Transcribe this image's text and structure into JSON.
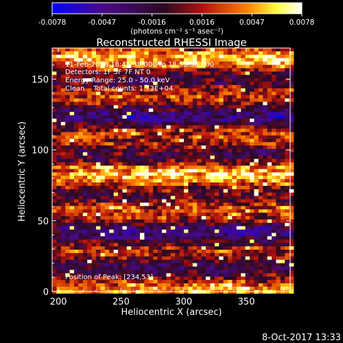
{
  "chart_data": {
    "type": "heatmap",
    "title": "Reconstructed RHESSI Image",
    "xlabel": "Heliocentric X (arcsec)",
    "ylabel": "Heliocentric Y (arcsec)",
    "xlim": [
      195,
      385
    ],
    "ylim": [
      0,
      172
    ],
    "xticks": [
      "200",
      "250",
      "300",
      "350"
    ],
    "yticks": [
      "0",
      "50",
      "100",
      "150"
    ],
    "grid": false,
    "pixel_size_arcsec": 4,
    "colorbar": {
      "min": -0.0078,
      "max": 0.0078,
      "tick_labels": [
        "-0.0078",
        "-0.0047",
        "-0.0016",
        "0.0016",
        "0.0047",
        "0.0078"
      ],
      "unit": "(photons cm⁻² s⁻¹ asec⁻²)",
      "colormap": "RHESSI blue-purple-red-yellow-white"
    },
    "annotations": [
      "11-Feb-2016 18:45:38.000 to 18:55:38.000",
      "Detectors: 1F 5F 7F NT 0",
      "Energy Range: 25.0 - 50.0 keV",
      "Clean    Total counts: 1.73E+04"
    ],
    "peak_label": "Position of Peak: [234,53]",
    "peak": [
      234,
      53
    ]
  },
  "footer": {
    "timestamp": "8-Oct-2017 13:33"
  },
  "colors": {
    "background": "#000000",
    "axes": "#ffffff",
    "colormap_stops": [
      "#0000ff",
      "#4a0a8a",
      "#2a0a20",
      "#b01010",
      "#ff8000",
      "#ffff40",
      "#ffffff"
    ]
  }
}
